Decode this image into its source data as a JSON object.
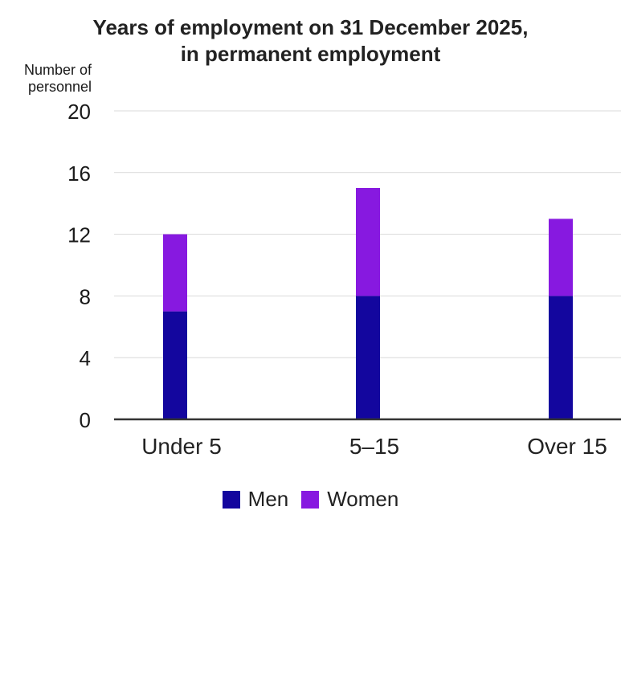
{
  "chart_data": {
    "type": "bar",
    "stacked": true,
    "title_lines": [
      "Years of employment on 31 December 2025,",
      "in permanent employment"
    ],
    "ylabel_lines": [
      "Number of",
      "personnel"
    ],
    "xlabel": "",
    "categories": [
      "Under 5",
      "5–15",
      "Over 15"
    ],
    "series": [
      {
        "name": "Men",
        "values": [
          7,
          8,
          8
        ],
        "color": "#13069e"
      },
      {
        "name": "Women",
        "values": [
          5,
          7,
          5
        ],
        "color": "#8719e0"
      }
    ],
    "ylim": [
      0,
      20
    ],
    "yticks": [
      0,
      4,
      8,
      12,
      16,
      20
    ],
    "grid": true,
    "legend_position": "bottom-center",
    "gridline_color": "#d9d9d9",
    "axis_color": "#333333"
  }
}
